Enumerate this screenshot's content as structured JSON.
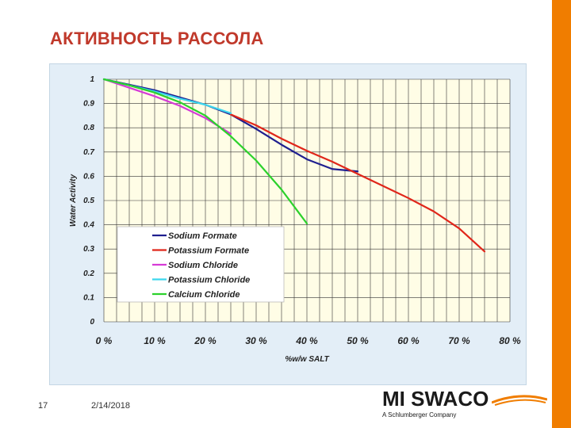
{
  "slide": {
    "title": "АКТИВНОСТЬ РАССОЛА",
    "page_number": "17",
    "date": "2/14/2018",
    "logo_text": "MI SWACO",
    "logo_subtitle": "A Schlumberger Company",
    "accent_color": "#f07d00",
    "title_color": "#c0392b"
  },
  "chart_data": {
    "type": "line",
    "title": "",
    "xlabel": "%w/w SALT",
    "ylabel": "Water Activity",
    "xlim": [
      0,
      80
    ],
    "ylim": [
      0,
      1
    ],
    "grid": true,
    "legend_position": "lower-left",
    "x_tick_labels": [
      "0 %",
      "10 %",
      "20 %",
      "30 %",
      "40 %",
      "50 %",
      "60 %",
      "70 %",
      "80 %"
    ],
    "y_tick_labels": [
      "0",
      "0.1",
      "0.2",
      "0.3",
      "0.4",
      "0.5",
      "0.6",
      "0.7",
      "0.8",
      "0.9",
      "1"
    ],
    "series": [
      {
        "name": "Sodium Formate",
        "color": "#1f1f8f",
        "x": [
          0,
          10,
          20,
          25,
          30,
          35,
          40,
          45,
          50
        ],
        "y": [
          1.0,
          0.955,
          0.895,
          0.855,
          0.795,
          0.73,
          0.67,
          0.63,
          0.62
        ]
      },
      {
        "name": "Potassium Formate",
        "color": "#e0261a",
        "x": [
          25,
          30,
          35,
          40,
          45,
          50,
          55,
          60,
          65,
          70,
          75
        ],
        "y": [
          0.855,
          0.81,
          0.755,
          0.705,
          0.66,
          0.61,
          0.56,
          0.51,
          0.455,
          0.385,
          0.29
        ]
      },
      {
        "name": "Sodium Chloride",
        "color": "#d63bd6",
        "x": [
          0,
          5,
          10,
          15,
          20,
          25
        ],
        "y": [
          1.0,
          0.965,
          0.93,
          0.89,
          0.84,
          0.775
        ]
      },
      {
        "name": "Potassium Chloride",
        "color": "#3cd6ee",
        "x": [
          0,
          5,
          10,
          15,
          20,
          25
        ],
        "y": [
          1.0,
          0.975,
          0.95,
          0.92,
          0.895,
          0.86
        ]
      },
      {
        "name": "Calcium Chloride",
        "color": "#2cd12c",
        "x": [
          0,
          5,
          10,
          15,
          20,
          25,
          30,
          35,
          40
        ],
        "y": [
          1.0,
          0.975,
          0.945,
          0.905,
          0.85,
          0.765,
          0.665,
          0.545,
          0.405
        ]
      }
    ]
  }
}
